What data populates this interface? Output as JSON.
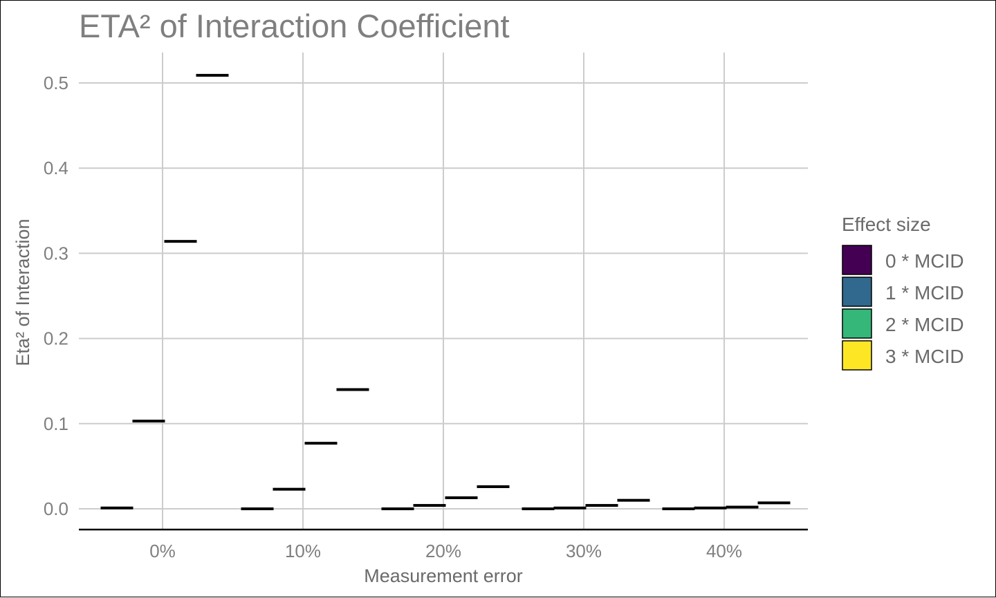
{
  "chart_data": {
    "type": "boxplot",
    "title": "ETA² of Interaction Coefficient",
    "xlabel": "Measurement error",
    "ylabel": "Eta² of Interaction",
    "categories": [
      "0%",
      "10%",
      "20%",
      "30%",
      "40%"
    ],
    "yticks": [
      "0.0",
      "0.1",
      "0.2",
      "0.3",
      "0.4",
      "0.5"
    ],
    "ylim": [
      -0.025,
      0.535
    ],
    "grid": true,
    "legend": {
      "title": "Effect size",
      "placement": "right"
    },
    "series": [
      {
        "name": "0 * MCID",
        "color": "#440154",
        "values": [
          0.001,
          0.0,
          0.0,
          0.0,
          0.0
        ]
      },
      {
        "name": "1 * MCID",
        "color": "#31688E",
        "values": [
          0.103,
          0.023,
          0.004,
          0.001,
          0.001
        ]
      },
      {
        "name": "2 * MCID",
        "color": "#35B779",
        "values": [
          0.314,
          0.077,
          0.013,
          0.004,
          0.002
        ]
      },
      {
        "name": "3 * MCID",
        "color": "#FDE725",
        "values": [
          0.509,
          0.14,
          0.026,
          0.01,
          0.007
        ]
      }
    ]
  }
}
